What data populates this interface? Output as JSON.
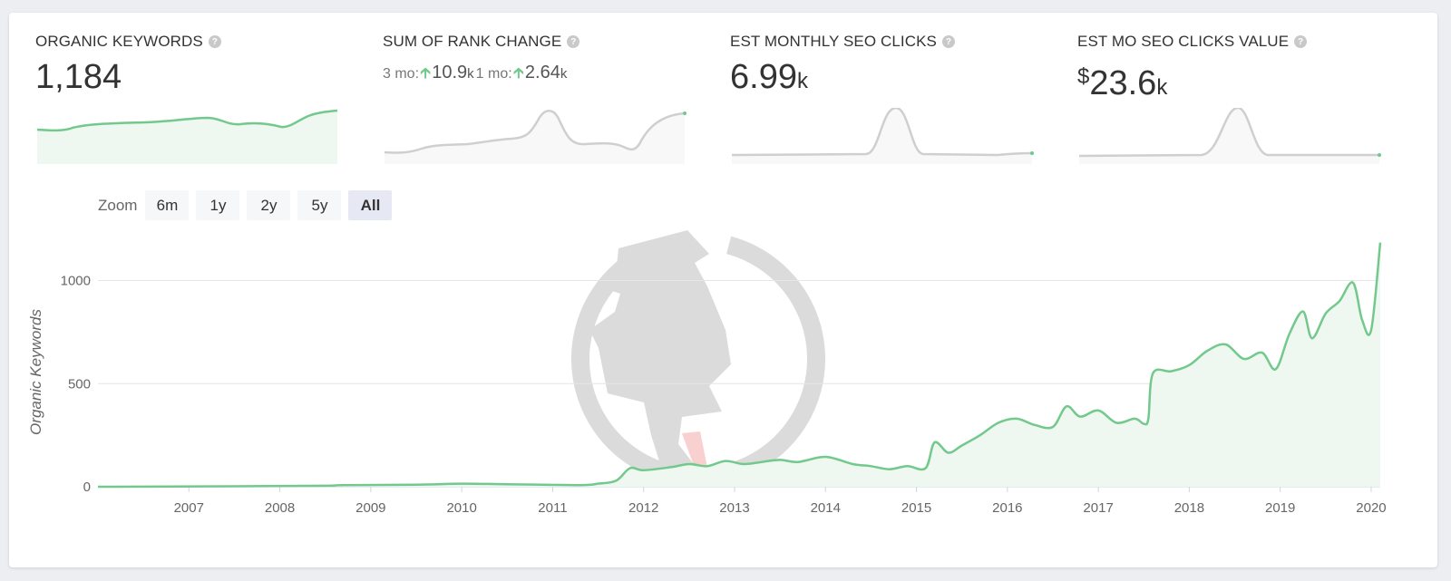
{
  "metrics": {
    "organic_keywords": {
      "title": "ORGANIC KEYWORDS",
      "value": "1,184",
      "spark_color": "#72c98b"
    },
    "sum_rank_change": {
      "title": "SUM OF RANK CHANGE",
      "three_mo_label": "3 mo:",
      "three_mo_value": "10.9",
      "three_mo_unit": "k",
      "one_mo_label": "1 mo:",
      "one_mo_value": "2.64",
      "one_mo_unit": "k",
      "spark_color": "#cfcfcf"
    },
    "est_monthly_clicks": {
      "title": "EST MONTHLY SEO CLICKS",
      "value": "6.99",
      "unit": "k",
      "spark_color": "#cfcfcf"
    },
    "est_clicks_value": {
      "title": "EST MO SEO CLICKS VALUE",
      "prefix": "$",
      "value": "23.6",
      "unit": "k",
      "spark_color": "#cfcfcf"
    }
  },
  "zoom": {
    "label": "Zoom",
    "buttons": [
      "6m",
      "1y",
      "2y",
      "5y",
      "All"
    ],
    "active": "All"
  },
  "chart_data": {
    "type": "area",
    "ylabel": "Organic Keywords",
    "xlabel": "",
    "ylim": [
      0,
      1200
    ],
    "yticks": [
      0,
      500,
      1000
    ],
    "xticks": [
      "2007",
      "2008",
      "2009",
      "2010",
      "2011",
      "2012",
      "2013",
      "2014",
      "2015",
      "2016",
      "2017",
      "2018",
      "2019",
      "2020"
    ],
    "xlim": [
      2006.5,
      2020.6
    ],
    "grid": true,
    "line_color": "#72c98b",
    "fill_color": "#eef8f1",
    "series": [
      {
        "x": [
          2006.5,
          2008.0,
          2009.0,
          2009.2,
          2010.0,
          2010.5,
          2011.0,
          2011.8,
          2012.0,
          2012.2,
          2012.35,
          2012.5,
          2012.8,
          2013.0,
          2013.2,
          2013.4,
          2013.6,
          2013.8,
          2014.0,
          2014.2,
          2014.5,
          2014.8,
          2015.0,
          2015.2,
          2015.4,
          2015.6,
          2015.7,
          2015.85,
          2016.0,
          2016.2,
          2016.4,
          2016.6,
          2016.8,
          2017.0,
          2017.15,
          2017.3,
          2017.5,
          2017.7,
          2017.9,
          2018.0,
          2018.05,
          2018.1,
          2018.3,
          2018.5,
          2018.7,
          2018.9,
          2019.1,
          2019.3,
          2019.45,
          2019.6,
          2019.75,
          2019.85,
          2020.0,
          2020.15,
          2020.3,
          2020.4,
          2020.5,
          2020.6
        ],
        "y": [
          0,
          2,
          5,
          8,
          10,
          15,
          12,
          8,
          15,
          30,
          90,
          80,
          95,
          110,
          100,
          125,
          110,
          120,
          130,
          120,
          145,
          110,
          100,
          85,
          100,
          90,
          215,
          165,
          200,
          250,
          310,
          330,
          300,
          290,
          390,
          340,
          370,
          310,
          330,
          305,
          330,
          550,
          560,
          590,
          660,
          690,
          620,
          650,
          570,
          740,
          850,
          720,
          840,
          900,
          990,
          810,
          760,
          1184
        ]
      }
    ]
  }
}
